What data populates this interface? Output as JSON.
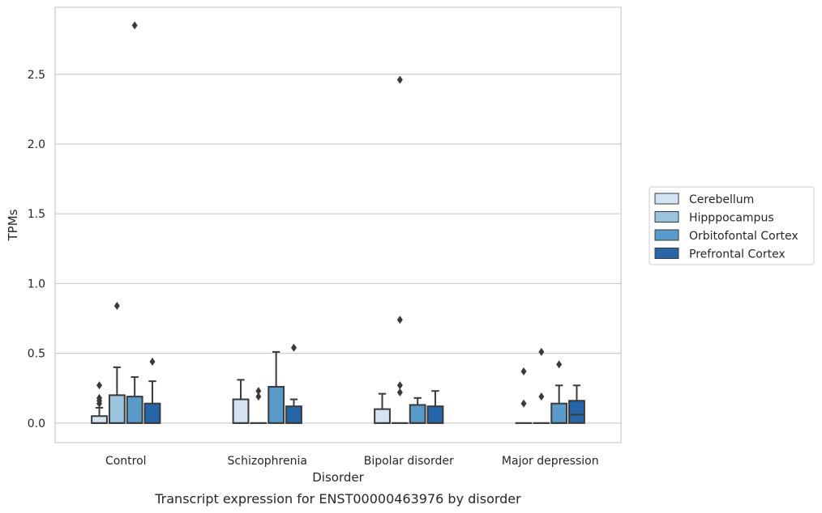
{
  "chart_data": {
    "type": "box",
    "title": "Transcript expression for ENST00000463976 by disorder",
    "xlabel": "Disorder",
    "ylabel": "TPMs",
    "categories": [
      "Control",
      "Schizophrenia",
      "Bipolar disorder",
      "Major depression"
    ],
    "ylim": [
      -0.14,
      2.98
    ],
    "yticks": [
      0.0,
      0.5,
      1.0,
      1.5,
      2.0,
      2.5
    ],
    "ytick_labels": [
      "0.0",
      "0.5",
      "1.0",
      "1.5",
      "2.0",
      "2.5"
    ],
    "grid": "horizontal",
    "legend_position": "right",
    "series": [
      {
        "name": "Cerebellum",
        "color": "#d3e3f2",
        "boxes": [
          {
            "q1": 0.0,
            "median": 0.0,
            "q3": 0.05,
            "whisker_low": 0.0,
            "whisker_high": 0.11,
            "outliers": [
              0.14,
              0.16,
              0.18,
              0.27
            ]
          },
          {
            "q1": 0.0,
            "median": 0.0,
            "q3": 0.17,
            "whisker_low": 0.0,
            "whisker_high": 0.31,
            "outliers": []
          },
          {
            "q1": 0.0,
            "median": 0.0,
            "q3": 0.1,
            "whisker_low": 0.0,
            "whisker_high": 0.21,
            "outliers": []
          },
          {
            "q1": 0.0,
            "median": 0.0,
            "q3": 0.0,
            "whisker_low": 0.0,
            "whisker_high": 0.0,
            "outliers": [
              0.14,
              0.37
            ]
          }
        ]
      },
      {
        "name": "Hipppocampus",
        "color": "#9dc4de",
        "boxes": [
          {
            "q1": 0.0,
            "median": 0.0,
            "q3": 0.2,
            "whisker_low": 0.0,
            "whisker_high": 0.4,
            "outliers": [
              0.84
            ]
          },
          {
            "q1": 0.0,
            "median": 0.0,
            "q3": 0.0,
            "whisker_low": 0.0,
            "whisker_high": 0.0,
            "outliers": [
              0.19,
              0.23
            ]
          },
          {
            "q1": 0.0,
            "median": 0.0,
            "q3": 0.0,
            "whisker_low": 0.0,
            "whisker_high": 0.0,
            "outliers": [
              0.22,
              0.27,
              0.74,
              2.46
            ]
          },
          {
            "q1": 0.0,
            "median": 0.0,
            "q3": 0.0,
            "whisker_low": 0.0,
            "whisker_high": 0.0,
            "outliers": [
              0.19,
              0.51
            ]
          }
        ]
      },
      {
        "name": "Orbitofontal Cortex",
        "color": "#5a9ac9",
        "boxes": [
          {
            "q1": 0.0,
            "median": 0.0,
            "q3": 0.19,
            "whisker_low": 0.0,
            "whisker_high": 0.33,
            "outliers": [
              2.85
            ]
          },
          {
            "q1": 0.0,
            "median": 0.0,
            "q3": 0.26,
            "whisker_low": 0.0,
            "whisker_high": 0.51,
            "outliers": []
          },
          {
            "q1": 0.0,
            "median": 0.0,
            "q3": 0.13,
            "whisker_low": 0.0,
            "whisker_high": 0.18,
            "outliers": []
          },
          {
            "q1": 0.0,
            "median": 0.0,
            "q3": 0.14,
            "whisker_low": 0.0,
            "whisker_high": 0.27,
            "outliers": [
              0.42
            ]
          }
        ]
      },
      {
        "name": "Prefrontal Cortex",
        "color": "#2666a8",
        "boxes": [
          {
            "q1": 0.0,
            "median": 0.0,
            "q3": 0.14,
            "whisker_low": 0.0,
            "whisker_high": 0.3,
            "outliers": [
              0.44
            ]
          },
          {
            "q1": 0.0,
            "median": 0.0,
            "q3": 0.12,
            "whisker_low": 0.0,
            "whisker_high": 0.17,
            "outliers": [
              0.54
            ]
          },
          {
            "q1": 0.0,
            "median": 0.0,
            "q3": 0.12,
            "whisker_low": 0.0,
            "whisker_high": 0.23,
            "outliers": []
          },
          {
            "q1": 0.0,
            "median": 0.06,
            "q3": 0.16,
            "whisker_low": 0.0,
            "whisker_high": 0.27,
            "outliers": []
          }
        ]
      }
    ]
  }
}
